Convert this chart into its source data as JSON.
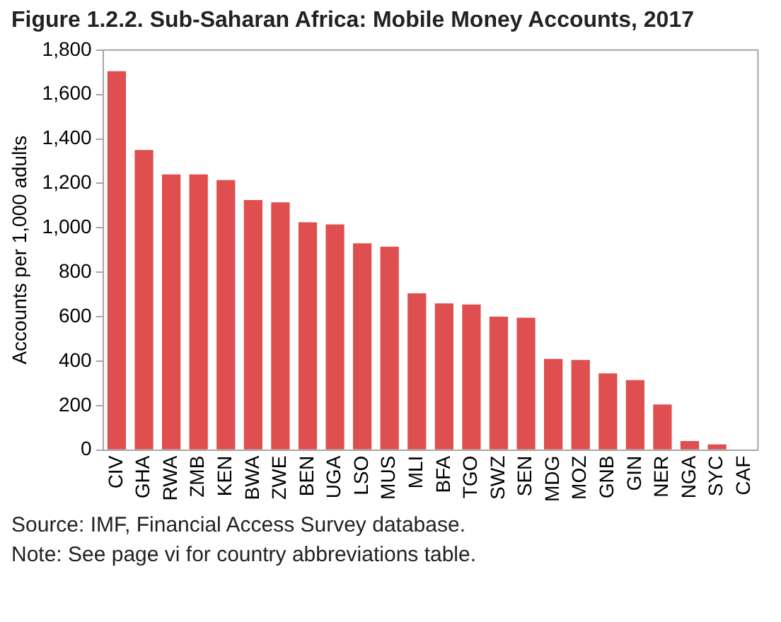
{
  "chart_data": {
    "type": "bar",
    "title": "Figure 1.2.2. Sub-Saharan Africa: Mobile Money Accounts, 2017",
    "ylabel": "Accounts per 1,000 adults",
    "categories": [
      "CIV",
      "GHA",
      "RWA",
      "ZMB",
      "KEN",
      "BWA",
      "ZWE",
      "BEN",
      "UGA",
      "LSO",
      "MUS",
      "MLI",
      "BFA",
      "TGO",
      "SWZ",
      "SEN",
      "MDG",
      "MOZ",
      "GNB",
      "GIN",
      "NER",
      "NGA",
      "SYC",
      "CAF"
    ],
    "values": [
      1705,
      1350,
      1240,
      1240,
      1215,
      1125,
      1115,
      1025,
      1015,
      930,
      915,
      705,
      660,
      655,
      600,
      595,
      410,
      405,
      345,
      315,
      205,
      40,
      25,
      0
    ],
    "color": "#df4f4f",
    "ylim": [
      0,
      1800
    ],
    "yticks": [
      0,
      200,
      400,
      600,
      800,
      {
        "value": 1000,
        "label": "1,000"
      },
      {
        "value": 1200,
        "label": "1,200"
      },
      {
        "value": 1400,
        "label": "1,400"
      },
      {
        "value": 1600,
        "label": "1,600"
      },
      {
        "value": 1800,
        "label": "1,800"
      }
    ],
    "grid": false,
    "annotations": [
      "Source: IMF, Financial Access Survey database.",
      "Note: See page vi for country abbreviations table."
    ]
  }
}
